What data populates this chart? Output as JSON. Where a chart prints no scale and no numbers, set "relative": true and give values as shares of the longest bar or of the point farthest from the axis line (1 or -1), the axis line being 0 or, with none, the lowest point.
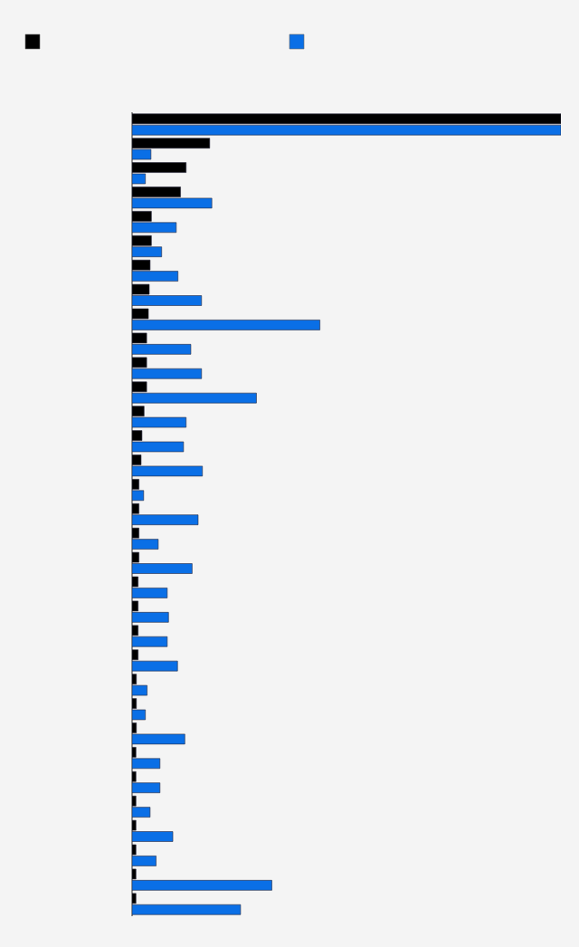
{
  "chart_data": {
    "type": "bar",
    "orientation": "horizontal",
    "relative": true,
    "categories": [
      null,
      null,
      null,
      null,
      null,
      null,
      null,
      null,
      null,
      null,
      null,
      null,
      null,
      null,
      null,
      null,
      null,
      null,
      null,
      null,
      null,
      null,
      null,
      null,
      null,
      null,
      null,
      null,
      null,
      null,
      null,
      null,
      null
    ],
    "series": [
      {
        "color": "#000000",
        "values": [
          1,
          0.181,
          0.126,
          0.113,
          0.045,
          0.045,
          0.042,
          0.04,
          0.038,
          0.034,
          0.034,
          0.034,
          0.028,
          0.023,
          0.021,
          0.016,
          0.016,
          0.016,
          0.016,
          0.014,
          0.014,
          0.014,
          0.014,
          0.01,
          0.01,
          0.01,
          0.009,
          0.009,
          0.009,
          0.009,
          0.009,
          0.009,
          0.009
        ]
      },
      {
        "color": "#0a6fe6",
        "values": [
          1,
          0.044,
          0.031,
          0.186,
          0.103,
          0.069,
          0.107,
          0.162,
          0.438,
          0.137,
          0.162,
          0.29,
          0.126,
          0.12,
          0.164,
          0.027,
          0.154,
          0.061,
          0.14,
          0.082,
          0.085,
          0.082,
          0.106,
          0.035,
          0.031,
          0.123,
          0.065,
          0.065,
          0.042,
          0.095,
          0.056,
          0.326,
          0.253
        ]
      }
    ]
  }
}
